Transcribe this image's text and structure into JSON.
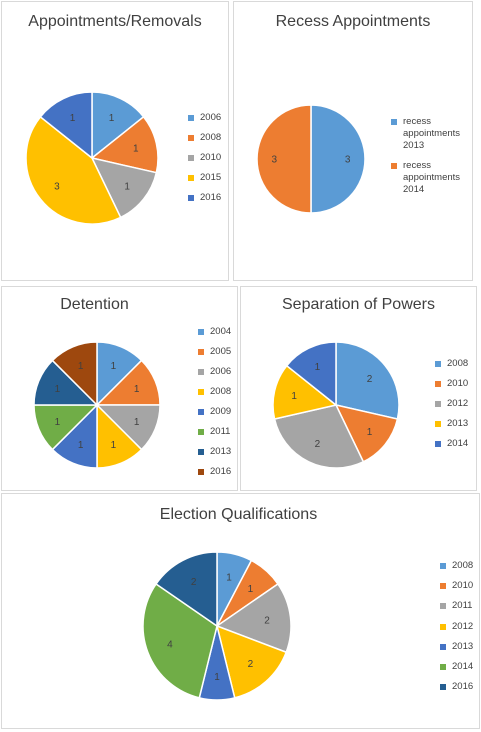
{
  "chart_data": [
    {
      "type": "pie",
      "title": "Appointments/Removals",
      "categories": [
        "2006",
        "2008",
        "2010",
        "2015",
        "2016"
      ],
      "values": [
        1,
        1,
        1,
        3,
        1
      ],
      "colors": [
        "#5B9BD5",
        "#ED7D31",
        "#A5A5A5",
        "#FFC000",
        "#4472C4"
      ],
      "legend_position": "right",
      "data_labels": true
    },
    {
      "type": "pie",
      "title": "Recess Appointments",
      "categories": [
        "recess appointments 2013",
        "recess appointments 2014"
      ],
      "values": [
        3,
        3
      ],
      "colors": [
        "#5B9BD5",
        "#ED7D31"
      ],
      "legend_position": "right",
      "data_labels": true
    },
    {
      "type": "pie",
      "title": "Detention",
      "categories": [
        "2004",
        "2005",
        "2006",
        "2008",
        "2009",
        "2011",
        "2013",
        "2016"
      ],
      "values": [
        1,
        1,
        1,
        1,
        1,
        1,
        1,
        1
      ],
      "colors": [
        "#5B9BD5",
        "#ED7D31",
        "#A5A5A5",
        "#FFC000",
        "#4472C4",
        "#70AD47",
        "#255E91",
        "#9E480E"
      ],
      "legend_position": "right",
      "data_labels": true
    },
    {
      "type": "pie",
      "title": "Separation of Powers",
      "categories": [
        "2008",
        "2010",
        "2012",
        "2013",
        "2014"
      ],
      "values": [
        2,
        1,
        2,
        1,
        1
      ],
      "colors": [
        "#5B9BD5",
        "#ED7D31",
        "#A5A5A5",
        "#FFC000",
        "#4472C4"
      ],
      "legend_position": "right",
      "data_labels": true
    },
    {
      "type": "pie",
      "title": "Election Qualifications",
      "categories": [
        "2008",
        "2010",
        "2011",
        "2012",
        "2013",
        "2014",
        "2016"
      ],
      "values": [
        1,
        1,
        2,
        2,
        1,
        4,
        2
      ],
      "colors": [
        "#5B9BD5",
        "#ED7D31",
        "#A5A5A5",
        "#FFC000",
        "#4472C4",
        "#70AD47",
        "#255E91"
      ],
      "legend_position": "right",
      "data_labels": true
    }
  ]
}
